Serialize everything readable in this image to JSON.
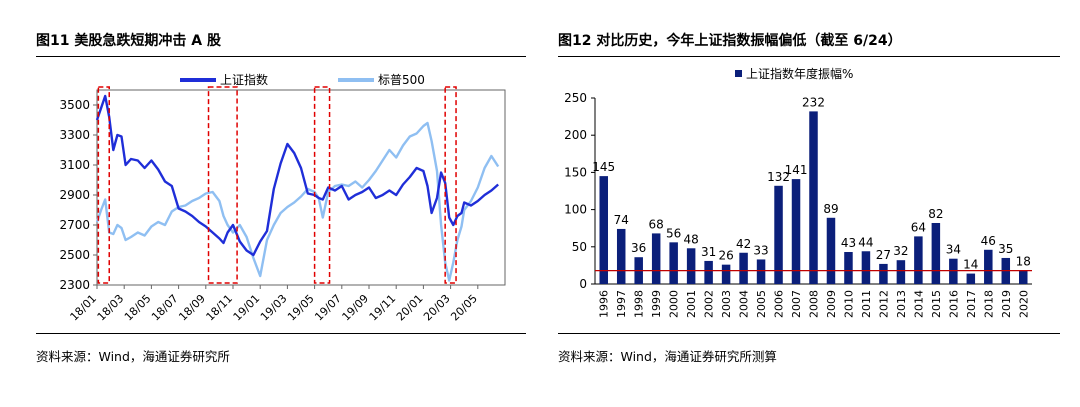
{
  "left": {
    "title": "图11 美股急跌短期冲击 A 股",
    "source": "资料来源：Wind，海通证券研究所"
  },
  "right": {
    "title": "图12 对比历史，今年上证指数振幅偏低（截至 6/24）",
    "source": "资料来源：Wind，海通证券研究所测算"
  },
  "colors": {
    "shanghai": "#1f2ed8",
    "sp500": "#8fbff2",
    "bar": "#0b1f7a",
    "reference_line": "#c00000",
    "highlight_box": "#e00000"
  },
  "chart_data": [
    {
      "type": "line",
      "title": "",
      "legend_position": "top",
      "grid": false,
      "ylim": [
        2300,
        3600
      ],
      "yticks": [
        2300,
        2500,
        2700,
        2900,
        3100,
        3300,
        3500
      ],
      "x_tick_labels": [
        "18/01",
        "18/03",
        "18/05",
        "18/07",
        "18/09",
        "18/11",
        "19/01",
        "19/03",
        "19/05",
        "19/07",
        "19/09",
        "19/11",
        "20/01",
        "20/03",
        "20/05"
      ],
      "x_range_months": [
        0,
        30
      ],
      "highlight_ranges_months": [
        [
          0.1,
          0.9
        ],
        [
          8.2,
          10.3
        ],
        [
          16.0,
          17.1
        ],
        [
          25.6,
          26.4
        ]
      ],
      "series": [
        {
          "name": "上证指数",
          "x_months": [
            0,
            0.3,
            0.6,
            0.9,
            1.2,
            1.5,
            1.8,
            2.1,
            2.5,
            3,
            3.5,
            4,
            4.5,
            5,
            5.5,
            6,
            6.5,
            7,
            7.5,
            8,
            8.5,
            9,
            9.3,
            9.6,
            10,
            10.5,
            11,
            11.5,
            12,
            12.5,
            13,
            13.5,
            14,
            14.5,
            15,
            15.5,
            16,
            16.3,
            16.6,
            17,
            17.5,
            18,
            18.5,
            19,
            19.5,
            20,
            20.5,
            21,
            21.5,
            22,
            22.5,
            23,
            23.5,
            24,
            24.3,
            24.6,
            25,
            25.3,
            25.6,
            25.9,
            26.2,
            26.5,
            26.8,
            27,
            27.5,
            28,
            28.5,
            29,
            29.5
          ],
          "values": [
            3400,
            3480,
            3560,
            3420,
            3200,
            3300,
            3290,
            3100,
            3140,
            3130,
            3080,
            3130,
            3070,
            2990,
            2960,
            2810,
            2790,
            2760,
            2720,
            2690,
            2650,
            2610,
            2580,
            2650,
            2700,
            2590,
            2530,
            2500,
            2590,
            2660,
            2940,
            3110,
            3240,
            3180,
            3080,
            2910,
            2900,
            2880,
            2870,
            2950,
            2930,
            2960,
            2870,
            2900,
            2920,
            2950,
            2880,
            2900,
            2930,
            2900,
            2970,
            3020,
            3080,
            3060,
            2960,
            2780,
            2880,
            3050,
            2980,
            2750,
            2700,
            2760,
            2780,
            2850,
            2830,
            2860,
            2900,
            2930,
            2970
          ]
        },
        {
          "name": "标普500",
          "x_months": [
            0,
            0.3,
            0.6,
            0.9,
            1.2,
            1.5,
            1.8,
            2.1,
            2.5,
            3,
            3.5,
            4,
            4.5,
            5,
            5.5,
            6,
            6.5,
            7,
            7.5,
            8,
            8.5,
            9,
            9.3,
            9.6,
            10,
            10.5,
            11,
            11.5,
            12,
            12.5,
            13,
            13.5,
            14,
            14.5,
            15,
            15.5,
            16,
            16.3,
            16.6,
            17,
            17.5,
            18,
            18.5,
            19,
            19.5,
            20,
            20.5,
            21,
            21.5,
            22,
            22.5,
            23,
            23.5,
            24,
            24.3,
            24.6,
            25,
            25.3,
            25.6,
            25.9,
            26.2,
            26.5,
            26.8,
            27,
            27.5,
            28,
            28.5,
            29,
            29.5
          ],
          "values": [
            2720,
            2800,
            2870,
            2650,
            2640,
            2700,
            2680,
            2600,
            2620,
            2650,
            2630,
            2690,
            2720,
            2700,
            2790,
            2820,
            2830,
            2860,
            2880,
            2910,
            2920,
            2860,
            2760,
            2700,
            2650,
            2700,
            2620,
            2480,
            2360,
            2600,
            2700,
            2780,
            2820,
            2850,
            2890,
            2940,
            2920,
            2880,
            2750,
            2920,
            2960,
            2970,
            2960,
            2990,
            2950,
            3000,
            3060,
            3130,
            3200,
            3150,
            3230,
            3290,
            3310,
            3360,
            3380,
            3260,
            3060,
            2700,
            2450,
            2330,
            2450,
            2600,
            2690,
            2800,
            2860,
            2950,
            3080,
            3160,
            3090
          ]
        }
      ]
    },
    {
      "type": "bar",
      "title": "",
      "legend": "上证指数年度振幅%",
      "legend_position": "top",
      "grid": false,
      "categories": [
        "1996",
        "1997",
        "1998",
        "1999",
        "2000",
        "2001",
        "2002",
        "2003",
        "2004",
        "2005",
        "2006",
        "2007",
        "2008",
        "2009",
        "2010",
        "2011",
        "2012",
        "2013",
        "2014",
        "2015",
        "2016",
        "2017",
        "2018",
        "2019",
        "2020"
      ],
      "values": [
        145,
        74,
        36,
        68,
        56,
        48,
        31,
        26,
        42,
        33,
        132,
        141,
        232,
        89,
        43,
        44,
        27,
        32,
        64,
        82,
        34,
        14,
        46,
        35,
        18
      ],
      "value_labels": [
        "145",
        "74",
        "36",
        "68",
        "56",
        "48",
        "31",
        "26",
        "42",
        "33",
        "132",
        "141",
        "232",
        "89",
        "43",
        "44",
        "27",
        "32",
        "64",
        "82",
        "34",
        "14",
        "46",
        "35",
        "18"
      ],
      "reference_line_value": 18,
      "ylim": [
        0,
        250
      ],
      "yticks": [
        0,
        50,
        100,
        150,
        200,
        250
      ]
    }
  ]
}
